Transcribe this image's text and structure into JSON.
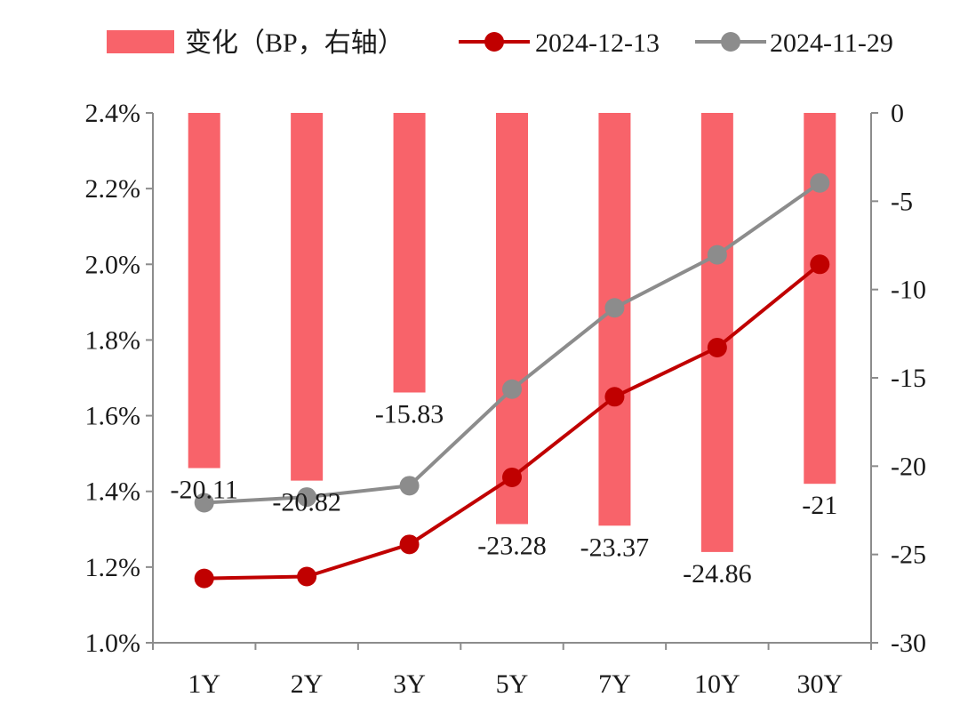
{
  "chart_data": {
    "type": "bar+line",
    "categories": [
      "1Y",
      "2Y",
      "3Y",
      "5Y",
      "7Y",
      "10Y",
      "30Y"
    ],
    "bar_series": {
      "name": "变化（BP，右轴）",
      "axis": "right",
      "values": [
        -20.11,
        -20.82,
        -15.83,
        -23.28,
        -23.37,
        -24.86,
        -21
      ],
      "labels": [
        "-20.11",
        "-20.82",
        "-15.83",
        "-23.28",
        "-23.37",
        "-24.86",
        "-21"
      ],
      "color": "#f8636a"
    },
    "line_series": [
      {
        "name": "2024-12-13",
        "axis": "left",
        "values": [
          0.0117,
          0.01175,
          0.0126,
          0.01437,
          0.0165,
          0.0178,
          0.02
        ],
        "color": "#c00000"
      },
      {
        "name": "2024-11-29",
        "axis": "left",
        "values": [
          0.0137,
          0.01385,
          0.01415,
          0.0167,
          0.01885,
          0.02025,
          0.02215
        ],
        "color": "#8c8c8c"
      }
    ],
    "left_axis": {
      "min": 0.01,
      "max": 0.024,
      "ticks": [
        "2.4%",
        "2.2%",
        "2.0%",
        "1.8%",
        "1.6%",
        "1.4%",
        "1.2%",
        "1.0%"
      ],
      "tick_values": [
        0.024,
        0.022,
        0.02,
        0.018,
        0.016,
        0.014,
        0.012,
        0.01
      ]
    },
    "right_axis": {
      "min": -30,
      "max": 0,
      "ticks": [
        "0",
        "-5",
        "-10",
        "-15",
        "-20",
        "-25",
        "-30"
      ],
      "tick_values": [
        0,
        -5,
        -10,
        -15,
        -20,
        -25,
        -30
      ]
    },
    "legend_position": "top",
    "grid": false
  }
}
